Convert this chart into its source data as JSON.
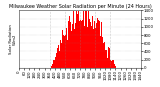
{
  "title": "Milwaukee Weather Solar Radiation per Minute (24 Hours)",
  "bar_color": "#ff0000",
  "background_color": "#ffffff",
  "grid_color": "#888888",
  "title_color": "#000000",
  "ylim": [
    0,
    1400
  ],
  "xlim": [
    0,
    1440
  ],
  "tick_label_fontsize": 2.8,
  "title_fontsize": 3.5,
  "num_minutes": 1440,
  "peak_minute": 760,
  "peak_value": 1380,
  "sunrise_minute": 370,
  "sunset_minute": 1150,
  "yticks": [
    0,
    200,
    400,
    600,
    800,
    1000,
    1200,
    1400
  ],
  "vgrid_positions": [
    360,
    540,
    720,
    900,
    1080
  ],
  "left_label": "Solar Radiation\nW/m2"
}
